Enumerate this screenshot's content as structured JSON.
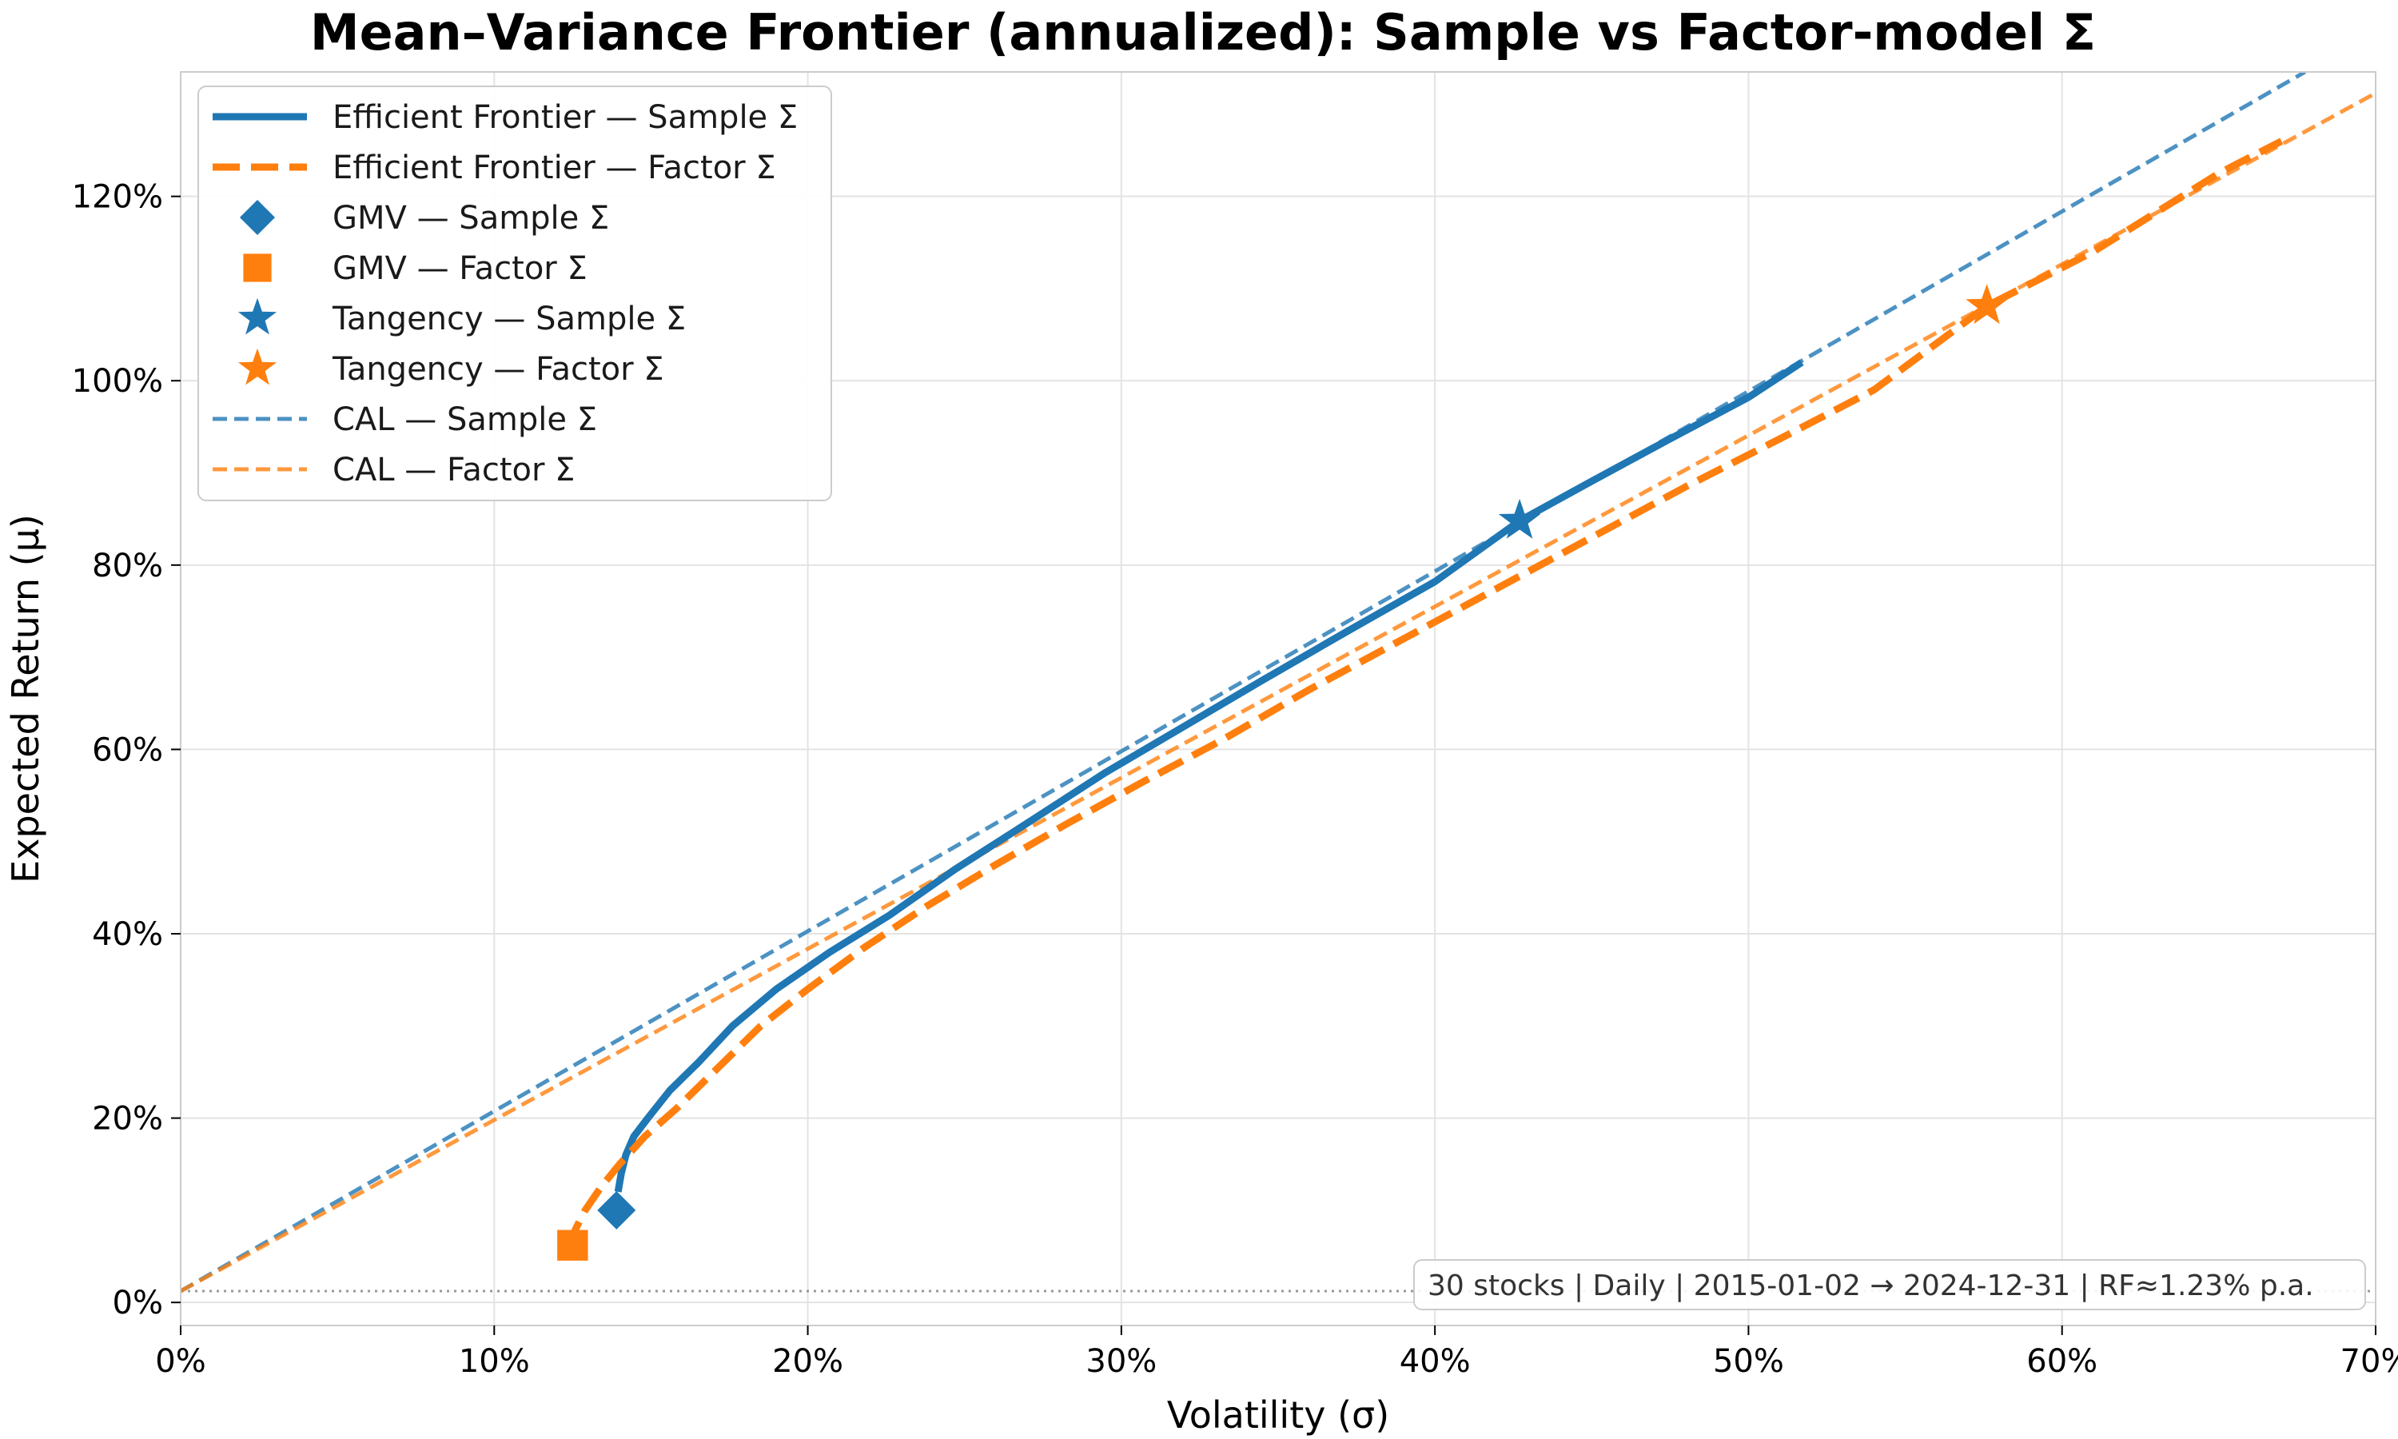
{
  "chart_data": {
    "type": "line",
    "title": "Mean–Variance Frontier (annualized): Sample vs Factor-model Σ",
    "xlabel": "Volatility (σ)",
    "ylabel": "Expected Return (μ)",
    "xlim": [
      0,
      0.7
    ],
    "ylim": [
      -0.025,
      1.335
    ],
    "x_ticks": [
      0,
      0.1,
      0.2,
      0.3,
      0.4,
      0.5,
      0.6,
      0.7
    ],
    "x_tick_labels": [
      "0%",
      "10%",
      "20%",
      "30%",
      "40%",
      "50%",
      "60%",
      "70%"
    ],
    "y_ticks": [
      0,
      0.2,
      0.4,
      0.6,
      0.8,
      1.0,
      1.2
    ],
    "y_tick_labels": [
      "0%",
      "20%",
      "40%",
      "60%",
      "80%",
      "100%",
      "120%"
    ],
    "grid": true,
    "legend_position": "top-left",
    "risk_free": 0.0123,
    "annotation": "30 stocks | Daily | 2015-01-02 → 2024-12-31 | RF≈1.23% p.a.",
    "colors": {
      "sample": "#1f77b4",
      "factor": "#ff7f0e",
      "rf_line": "#999999"
    },
    "series": [
      {
        "name": "Efficient Frontier — Sample Σ",
        "style": "solid",
        "color": "#1f77b4",
        "points": [
          [
            0.1395,
            0.12
          ],
          [
            0.1405,
            0.14
          ],
          [
            0.142,
            0.16
          ],
          [
            0.1445,
            0.18
          ],
          [
            0.149,
            0.2
          ],
          [
            0.156,
            0.23
          ],
          [
            0.165,
            0.26
          ],
          [
            0.176,
            0.3
          ],
          [
            0.19,
            0.34
          ],
          [
            0.207,
            0.38
          ],
          [
            0.226,
            0.42
          ],
          [
            0.247,
            0.47
          ],
          [
            0.27,
            0.52
          ],
          [
            0.295,
            0.575
          ],
          [
            0.32,
            0.625
          ],
          [
            0.345,
            0.675
          ],
          [
            0.372,
            0.728
          ],
          [
            0.4,
            0.782
          ],
          [
            0.427,
            0.848
          ],
          [
            0.45,
            0.891
          ],
          [
            0.475,
            0.937
          ],
          [
            0.5,
            0.982
          ],
          [
            0.517,
            1.02
          ]
        ]
      },
      {
        "name": "Efficient Frontier — Factor Σ",
        "style": "dashed",
        "color": "#ff7f0e",
        "points": [
          [
            0.124,
            0.06
          ],
          [
            0.126,
            0.08
          ],
          [
            0.129,
            0.1
          ],
          [
            0.134,
            0.125
          ],
          [
            0.14,
            0.15
          ],
          [
            0.148,
            0.18
          ],
          [
            0.158,
            0.21
          ],
          [
            0.17,
            0.25
          ],
          [
            0.185,
            0.3
          ],
          [
            0.2,
            0.34
          ],
          [
            0.218,
            0.385
          ],
          [
            0.238,
            0.43
          ],
          [
            0.26,
            0.475
          ],
          [
            0.283,
            0.52
          ],
          [
            0.307,
            0.565
          ],
          [
            0.332,
            0.61
          ],
          [
            0.36,
            0.665
          ],
          [
            0.39,
            0.72
          ],
          [
            0.42,
            0.775
          ],
          [
            0.45,
            0.83
          ],
          [
            0.48,
            0.885
          ],
          [
            0.51,
            0.937
          ],
          [
            0.54,
            0.99
          ],
          [
            0.576,
            1.081
          ],
          [
            0.61,
            1.14
          ],
          [
            0.65,
            1.225
          ],
          [
            0.67,
            1.26
          ]
        ]
      },
      {
        "name": "GMV — Sample Σ",
        "marker": "diamond",
        "color": "#1f77b4",
        "points": [
          [
            0.139,
            0.1
          ]
        ]
      },
      {
        "name": "GMV — Factor Σ",
        "marker": "square",
        "color": "#ff7f0e",
        "points": [
          [
            0.125,
            0.062
          ]
        ]
      },
      {
        "name": "Tangency — Sample Σ",
        "marker": "star",
        "color": "#1f77b4",
        "points": [
          [
            0.427,
            0.848
          ]
        ]
      },
      {
        "name": "Tangency — Factor Σ",
        "marker": "star",
        "color": "#ff7f0e",
        "points": [
          [
            0.576,
            1.081
          ]
        ]
      },
      {
        "name": "CAL — Sample Σ",
        "style": "thin-dashed",
        "color": "#1f77b4",
        "points": [
          [
            0,
            0.0123
          ],
          [
            0.6775,
            1.335
          ]
        ]
      },
      {
        "name": "CAL — Factor Σ",
        "style": "thin-dashed",
        "color": "#ff7f0e",
        "points": [
          [
            0,
            0.0123
          ],
          [
            0.7,
            1.312
          ]
        ]
      }
    ]
  }
}
